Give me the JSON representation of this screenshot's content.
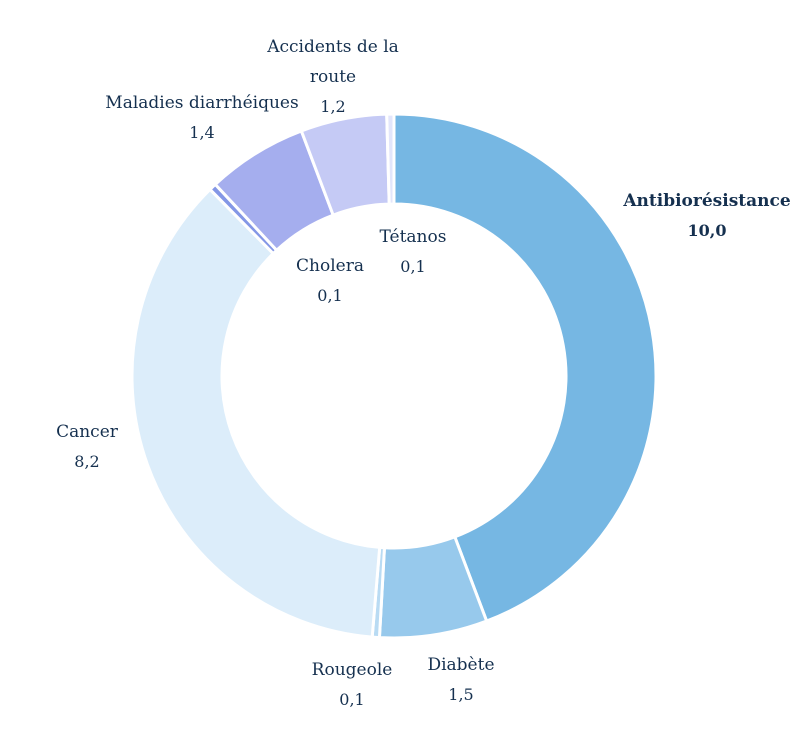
{
  "chart_data": {
    "type": "pie",
    "variant": "donut",
    "title": "",
    "slices": [
      {
        "label": "Antibiorésistance",
        "label_lines": [
          "Antibiorésistance"
        ],
        "value": 10.0,
        "value_label": "10,0",
        "color": "#76b7e3",
        "emphasis": true
      },
      {
        "label": "Diabète",
        "label_lines": [
          "Diabète"
        ],
        "value": 1.5,
        "value_label": "1,5",
        "color": "#97c9ec",
        "emphasis": false
      },
      {
        "label": "Rougeole",
        "label_lines": [
          "Rougeole"
        ],
        "value": 0.1,
        "value_label": "0,1",
        "color": "#b9dbf3",
        "emphasis": false
      },
      {
        "label": "Cancer",
        "label_lines": [
          "Cancer"
        ],
        "value": 8.2,
        "value_label": "8,2",
        "color": "#dcedfa",
        "emphasis": false
      },
      {
        "label": "Cholera",
        "label_lines": [
          "Cholera"
        ],
        "value": 0.1,
        "value_label": "0,1",
        "color": "#8497e6",
        "emphasis": false
      },
      {
        "label": "Maladies diarrhéiques",
        "label_lines": [
          "Maladies diarrhéiques"
        ],
        "value": 1.4,
        "value_label": "1,4",
        "color": "#a5aeee",
        "emphasis": false
      },
      {
        "label": "Accidents de la route",
        "label_lines": [
          "Accidents de la",
          "route"
        ],
        "value": 1.2,
        "value_label": "1,2",
        "color": "#c5caf5",
        "emphasis": false
      },
      {
        "label": "Tétanos",
        "label_lines": [
          "Tétanos"
        ],
        "value": 0.1,
        "value_label": "0,1",
        "color": "#e3e6fb",
        "emphasis": false
      }
    ]
  }
}
